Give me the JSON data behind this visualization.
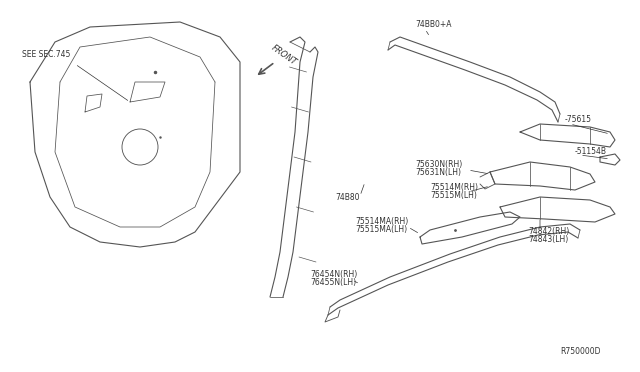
{
  "title": "",
  "background_color": "#ffffff",
  "fig_width": 6.4,
  "fig_height": 3.72,
  "dpi": 100,
  "labels": {
    "see_sec": "SEE SEC.745",
    "front": "FRONT",
    "ref_code": "R750000D",
    "part_74880_plus_a": "74BB0+A",
    "part_75615": "-75615",
    "part_51154b": "-51154B",
    "part_75630": "75630N(RH)",
    "part_75631": "75631N(LH)",
    "part_75514m": "75514M(RH)",
    "part_75515m": "75515M(LH)",
    "part_74880": "74B80",
    "part_75514ma": "75514MA(RH)",
    "part_75515ma": "75515MA(LH)",
    "part_74842": "74842(RH)",
    "part_74843": "74843(LH)",
    "part_76454": "76454N(RH)",
    "part_76455": "76455N(LH)"
  },
  "line_color": "#555555",
  "label_color": "#333333",
  "font_size": 5.5,
  "line_width": 0.8
}
